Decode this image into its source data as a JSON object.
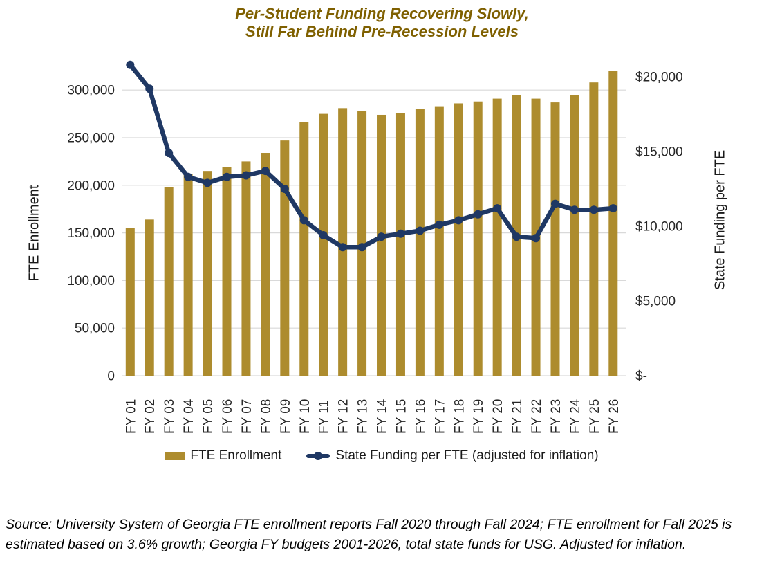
{
  "title": {
    "line1": "Per-Student Funding Recovering Slowly,",
    "line2": "Still Far Behind Pre-Recession Levels"
  },
  "source_note": "Source: University System of Georgia FTE enrollment reports Fall 2020 through Fall 2024; FTE enrollment for Fall 2025 is estimated based on 3.6% growth; Georgia FY budgets 2001-2026, total state funds for USG. Adjusted for inflation.",
  "chart_data": {
    "type": "combo-bar-line",
    "title": "Per-Student Funding Recovering Slowly, Still Far Behind Pre-Recession Levels",
    "categories": [
      "FY 01",
      "FY 02",
      "FY 03",
      "FY 04",
      "FY 05",
      "FY 06",
      "FY 07",
      "FY 08",
      "FY 09",
      "FY 10",
      "FY 11",
      "FY 12",
      "FY 13",
      "FY 14",
      "FY 15",
      "FY 16",
      "FY 17",
      "FY 18",
      "FY 19",
      "FY 20",
      "FY 21",
      "FY 22",
      "FY 23",
      "FY 24",
      "FY 25",
      "FY 26"
    ],
    "series": [
      {
        "name": "FTE Enrollment",
        "type": "bar",
        "axis": "left",
        "color": "#AD8C2E",
        "values": [
          155000,
          164000,
          198000,
          212000,
          215000,
          219000,
          225000,
          234000,
          247000,
          266000,
          275000,
          281000,
          278000,
          274000,
          276000,
          280000,
          283000,
          286000,
          288000,
          291000,
          295000,
          291000,
          287000,
          295000,
          308000,
          320000
        ]
      },
      {
        "name": "State Funding per FTE (adjusted for inflation)",
        "type": "line",
        "axis": "right",
        "color": "#1F3864",
        "values": [
          20800,
          19200,
          14900,
          13300,
          12900,
          13300,
          13400,
          13700,
          12500,
          10400,
          9400,
          8600,
          8600,
          9300,
          9500,
          9700,
          10100,
          10400,
          10800,
          11200,
          9300,
          9200,
          11500,
          11100,
          11100,
          11200
        ]
      }
    ],
    "left_axis": {
      "label": "FTE Enrollment",
      "min": 0,
      "tick_values": [
        0,
        50000,
        100000,
        150000,
        200000,
        250000,
        300000
      ],
      "tick_labels": [
        "0",
        "50,000",
        "100,000",
        "150,000",
        "200,000",
        "250,000",
        "300,000"
      ]
    },
    "right_axis": {
      "label": "State Funding per FTE",
      "min": 0,
      "tick_values": [
        0,
        5000,
        10000,
        15000,
        20000
      ],
      "tick_labels": [
        "$-",
        "$5,000",
        "$10,000",
        "$15,000",
        "$20,000"
      ]
    },
    "grid": true,
    "legend_position": "bottom",
    "colors": {
      "bar": "#AD8C2E",
      "line": "#1F3864",
      "gridline": "#D9D9D9",
      "title": "#7F6000",
      "text": "#262626"
    }
  }
}
